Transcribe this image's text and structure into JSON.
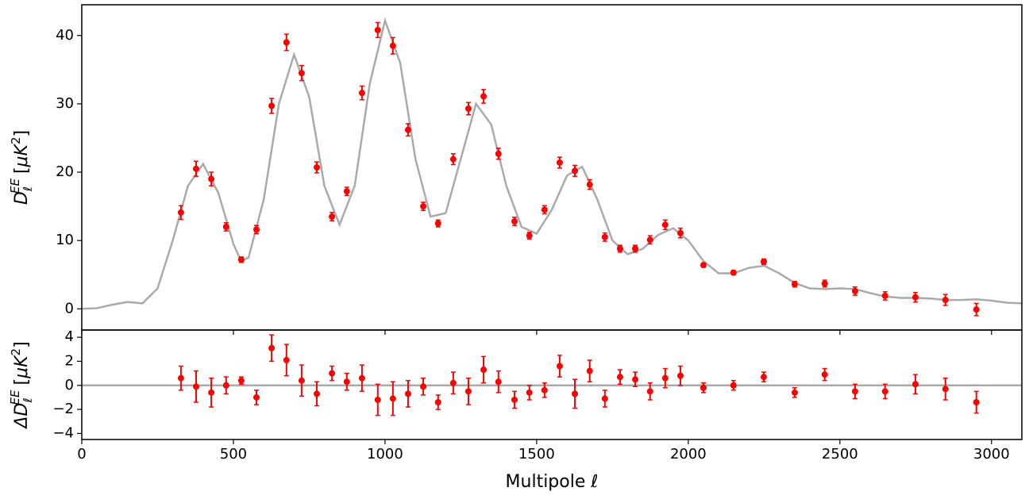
{
  "chart_data": [
    {
      "type": "errorbar",
      "ylabel": [
        "D",
        "ℓ",
        "EE",
        "[",
        "μK",
        "2",
        "]"
      ],
      "xlim": [
        0,
        3100
      ],
      "ylim": [
        -3.1,
        44.5
      ],
      "xticks": [
        0,
        500,
        1000,
        1500,
        2000,
        2500,
        3000
      ],
      "xtick_labels": false,
      "yticks": [
        0,
        10,
        20,
        30,
        40
      ],
      "model": {
        "color": "#aaaaaa",
        "x": [
          0,
          50,
          100,
          150,
          200,
          250,
          300,
          350,
          400,
          450,
          500,
          525,
          550,
          600,
          650,
          700,
          750,
          800,
          850,
          900,
          950,
          1000,
          1050,
          1100,
          1150,
          1200,
          1250,
          1300,
          1350,
          1400,
          1450,
          1500,
          1550,
          1600,
          1650,
          1700,
          1750,
          1800,
          1850,
          1900,
          1950,
          2000,
          2050,
          2100,
          2150,
          2200,
          2250,
          2300,
          2350,
          2400,
          2450,
          2500,
          2550,
          2600,
          2650,
          2700,
          2750,
          2800,
          2850,
          2900,
          2950,
          3000,
          3050,
          3100
        ],
        "values": [
          0,
          0.1,
          0.6,
          1.0,
          0.8,
          3,
          10,
          18,
          21.2,
          17,
          9.5,
          7.0,
          7.5,
          16,
          30,
          37.2,
          31,
          18,
          12.3,
          18,
          33,
          42.2,
          36,
          22,
          13.5,
          14,
          22,
          30,
          27,
          18,
          12,
          11,
          14.5,
          19.5,
          20.8,
          16,
          10,
          8,
          8.8,
          10.8,
          11.8,
          10,
          7,
          5.2,
          5.2,
          6,
          6.3,
          5.2,
          3.8,
          3,
          2.9,
          3.0,
          2.9,
          2.3,
          1.8,
          1.6,
          1.6,
          1.5,
          1.3,
          1.3,
          1.4,
          1.2,
          0.9,
          0.8
        ]
      },
      "points": {
        "color": "#ff0000",
        "x": [
          327,
          377,
          427,
          476,
          526,
          576,
          626,
          675,
          725,
          775,
          825,
          874,
          924,
          976,
          1026,
          1076,
          1126,
          1175,
          1225,
          1275,
          1325,
          1374,
          1427,
          1476,
          1526,
          1576,
          1626,
          1675,
          1725,
          1775,
          1825,
          1874,
          1924,
          1974,
          2050,
          2149,
          2249,
          2351,
          2450,
          2550,
          2649,
          2749,
          2848,
          2950
        ],
        "values": [
          14.1,
          20.5,
          19.0,
          12.0,
          7.2,
          11.6,
          29.7,
          39.0,
          34.5,
          20.7,
          13.5,
          17.2,
          31.6,
          40.8,
          38.5,
          26.2,
          15.0,
          12.5,
          21.9,
          29.3,
          31.1,
          22.7,
          12.8,
          10.7,
          14.5,
          21.4,
          20.2,
          18.2,
          10.5,
          8.8,
          8.8,
          10.1,
          12.3,
          11.1,
          6.4,
          5.3,
          6.9,
          3.6,
          3.7,
          2.6,
          1.9,
          1.7,
          1.3,
          -0.1
        ],
        "errors": [
          1.0,
          1.1,
          1.0,
          0.6,
          0.4,
          0.6,
          1.1,
          1.2,
          1.1,
          0.8,
          0.6,
          0.6,
          1.0,
          1.1,
          1.2,
          0.9,
          0.6,
          0.5,
          0.8,
          0.9,
          1.0,
          0.8,
          0.6,
          0.5,
          0.6,
          0.8,
          0.8,
          0.7,
          0.6,
          0.5,
          0.5,
          0.6,
          0.7,
          0.7,
          0.3,
          0.3,
          0.4,
          0.4,
          0.5,
          0.6,
          0.6,
          0.7,
          0.8,
          0.9
        ]
      }
    },
    {
      "type": "errorbar",
      "ylabel": [
        "ΔD",
        "ℓ",
        "EE",
        "[",
        "μK",
        "2",
        "]"
      ],
      "xlabel": "Multipole ℓ",
      "xlim": [
        0,
        3100
      ],
      "ylim": [
        -4.5,
        4.6
      ],
      "xticks": [
        0,
        500,
        1000,
        1500,
        2000,
        2500,
        3000
      ],
      "xtick_labels": true,
      "yticks": [
        {
          "value": -4,
          "label": "−4"
        },
        {
          "value": -2,
          "label": "−2"
        },
        0,
        2,
        4
      ],
      "reference_line": {
        "value": 0,
        "color": "#aaaaaa"
      },
      "points": {
        "color": "#ff0000",
        "x": [
          327,
          377,
          427,
          476,
          526,
          576,
          626,
          675,
          725,
          775,
          825,
          874,
          924,
          976,
          1026,
          1076,
          1126,
          1175,
          1225,
          1275,
          1325,
          1374,
          1427,
          1476,
          1526,
          1576,
          1626,
          1675,
          1725,
          1775,
          1825,
          1874,
          1924,
          1974,
          2050,
          2149,
          2249,
          2351,
          2450,
          2550,
          2649,
          2749,
          2848,
          2950
        ],
        "values": [
          0.6,
          -0.1,
          -0.6,
          0.0,
          0.4,
          -1.0,
          3.1,
          2.1,
          0.4,
          -0.7,
          1.0,
          0.3,
          0.6,
          -1.2,
          -1.1,
          -0.7,
          -0.1,
          -1.4,
          0.2,
          -0.5,
          1.3,
          0.3,
          -1.2,
          -0.6,
          -0.4,
          1.6,
          -0.7,
          1.2,
          -1.1,
          0.7,
          0.5,
          -0.5,
          0.6,
          0.8,
          -0.2,
          0.0,
          0.7,
          -0.6,
          0.9,
          -0.5,
          -0.5,
          0.1,
          -0.3,
          -1.4
        ],
        "errors": [
          1.0,
          1.3,
          1.2,
          0.7,
          0.3,
          0.6,
          1.1,
          1.3,
          1.3,
          1.0,
          0.6,
          0.7,
          1.1,
          1.3,
          1.4,
          1.1,
          0.7,
          0.6,
          0.9,
          1.1,
          1.1,
          0.9,
          0.7,
          0.6,
          0.6,
          0.9,
          1.2,
          0.9,
          0.7,
          0.6,
          0.6,
          0.7,
          0.8,
          0.8,
          0.4,
          0.4,
          0.4,
          0.4,
          0.5,
          0.6,
          0.6,
          0.8,
          0.9,
          0.9
        ]
      }
    }
  ]
}
